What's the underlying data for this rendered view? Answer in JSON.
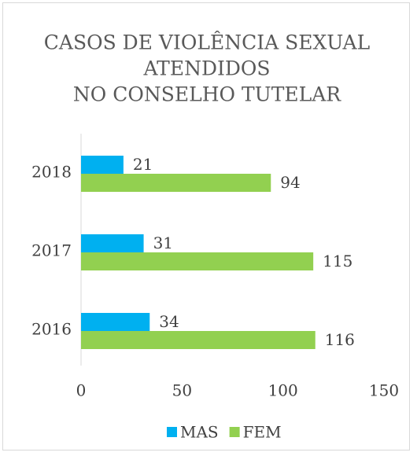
{
  "chart_data": {
    "type": "hbar",
    "title": [
      "CASOS DE VIOLÊNCIA SEXUAL",
      "ATENDIDOS",
      "NO CONSELHO TUTELAR"
    ],
    "categories": [
      "2018",
      "2017",
      "2016"
    ],
    "series": [
      {
        "name": "MAS",
        "color": "#00b0f0",
        "values": [
          21,
          31,
          34
        ]
      },
      {
        "name": "FEM",
        "color": "#92d050",
        "values": [
          94,
          115,
          116
        ]
      }
    ],
    "xlim": [
      0,
      150
    ],
    "xticks": [
      0,
      50,
      100,
      150
    ],
    "grid": false,
    "legend": "bottom"
  }
}
